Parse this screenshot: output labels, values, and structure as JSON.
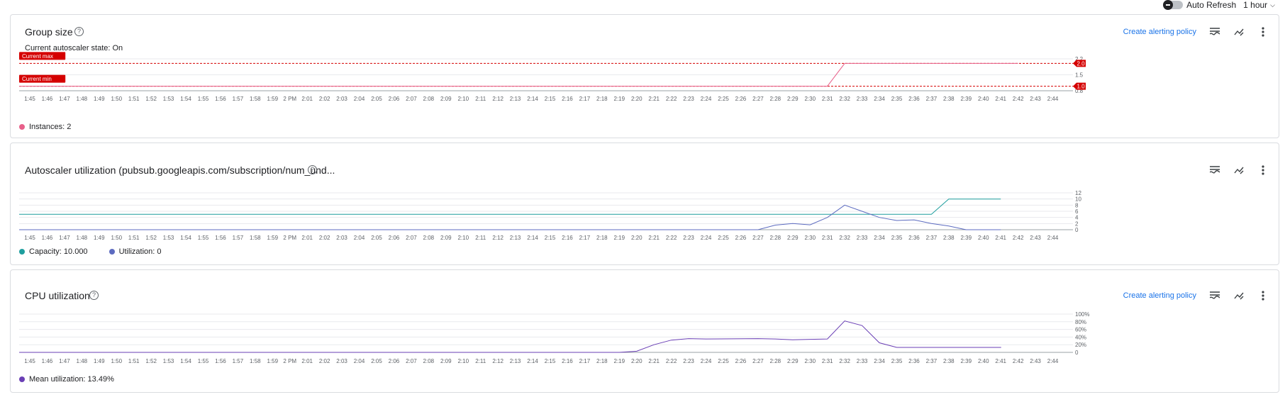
{
  "toolbar": {
    "auto_refresh_label": "Auto Refresh",
    "auto_refresh_on": false,
    "time_range": "1 hour"
  },
  "time_ticks": [
    "1:45",
    "1:46",
    "1:47",
    "1:48",
    "1:49",
    "1:50",
    "1:51",
    "1:52",
    "1:53",
    "1:54",
    "1:55",
    "1:56",
    "1:57",
    "1:58",
    "1:59",
    "2 PM",
    "2:01",
    "2:02",
    "2:03",
    "2:04",
    "2:05",
    "2:06",
    "2:07",
    "2:08",
    "2:09",
    "2:10",
    "2:11",
    "2:12",
    "2:13",
    "2:14",
    "2:15",
    "2:16",
    "2:17",
    "2:18",
    "2:19",
    "2:20",
    "2:21",
    "2:22",
    "2:23",
    "2:24",
    "2:25",
    "2:26",
    "2:27",
    "2:28",
    "2:29",
    "2:30",
    "2:31",
    "2:32",
    "2:33",
    "2:34",
    "2:35",
    "2:36",
    "2:37",
    "2:38",
    "2:39",
    "2:40",
    "2:41",
    "2:42",
    "2:43",
    "2:44"
  ],
  "cards": {
    "group_size": {
      "title": "Group size",
      "subtitle": "Current autoscaler state: On",
      "alert_link": "Create alerting policy",
      "legend": [
        {
          "label": "Instances: 2",
          "color": "#e8608a"
        }
      ]
    },
    "autoscaler": {
      "title": "Autoscaler utilization (pubsub.googleapis.com/subscription/num_und...",
      "legend": [
        {
          "label": "Capacity: 10.000",
          "color": "#1e9e9e"
        },
        {
          "label": "Utilization: 0",
          "color": "#5c6bc0"
        }
      ]
    },
    "cpu": {
      "title": "CPU utilization",
      "alert_link": "Create alerting policy",
      "legend": [
        {
          "label": "Mean utilization: 13.49%",
          "color": "#6a3fb5"
        }
      ]
    }
  },
  "chart_data": [
    {
      "type": "line",
      "title": "Group size",
      "y_ticks": [
        "2.2",
        "1.5",
        "0.8"
      ],
      "ylim": [
        0.8,
        2.2
      ],
      "threshold_lines": [
        {
          "label": "Current max",
          "value": 2.0,
          "value_label": "2.0",
          "color": "#d50000"
        },
        {
          "label": "Current min",
          "value": 1.0,
          "value_label": "1.0",
          "color": "#d50000"
        }
      ],
      "series": [
        {
          "color": "#e8608a",
          "points": [
            [
              "1:45",
              1
            ],
            [
              "2:31",
              1
            ],
            [
              "2:32",
              2
            ],
            [
              "2:42",
              2
            ]
          ]
        }
      ]
    },
    {
      "type": "line",
      "title": "Autoscaler utilization (pubsub.googleapis.com/subscription/num_und...",
      "y_ticks": [
        "12",
        "10",
        "8",
        "6",
        "4",
        "2",
        "0"
      ],
      "ylim": [
        0,
        12
      ],
      "series": [
        {
          "name": "Capacity",
          "color": "#1e9e9e",
          "points": [
            [
              "1:45",
              5
            ],
            [
              "2:37",
              5
            ],
            [
              "2:38",
              10
            ],
            [
              "2:41",
              10
            ]
          ]
        },
        {
          "name": "Utilization",
          "color": "#5c6bc0",
          "points": [
            [
              "1:45",
              0
            ],
            [
              "2:27",
              0
            ],
            [
              "2:28",
              1.5
            ],
            [
              "2:29",
              2
            ],
            [
              "2:30",
              1.6
            ],
            [
              "2:31",
              4
            ],
            [
              "2:32",
              8
            ],
            [
              "2:33",
              6
            ],
            [
              "2:34",
              4
            ],
            [
              "2:35",
              3
            ],
            [
              "2:36",
              3.2
            ],
            [
              "2:37",
              2
            ],
            [
              "2:38",
              1.2
            ],
            [
              "2:39",
              0
            ],
            [
              "2:41",
              0
            ]
          ]
        }
      ]
    },
    {
      "type": "line",
      "title": "CPU utilization",
      "y_ticks": [
        "100%",
        "80%",
        "60%",
        "40%",
        "20%",
        "0"
      ],
      "ylim": [
        0,
        100
      ],
      "series": [
        {
          "name": "Mean utilization",
          "color": "#6a3fb5",
          "points": [
            [
              "1:45",
              0
            ],
            [
              "2:19",
              0
            ],
            [
              "2:20",
              3
            ],
            [
              "2:21",
              20
            ],
            [
              "2:22",
              32
            ],
            [
              "2:23",
              36
            ],
            [
              "2:24",
              35
            ],
            [
              "2:27",
              36
            ],
            [
              "2:28",
              35
            ],
            [
              "2:29",
              33
            ],
            [
              "2:30",
              34
            ],
            [
              "2:31",
              35
            ],
            [
              "2:32",
              82
            ],
            [
              "2:33",
              70
            ],
            [
              "2:34",
              25
            ],
            [
              "2:35",
              13
            ],
            [
              "2:36",
              13
            ],
            [
              "2:41",
              13
            ],
            [
              "2:41",
              12
            ]
          ]
        }
      ]
    }
  ]
}
